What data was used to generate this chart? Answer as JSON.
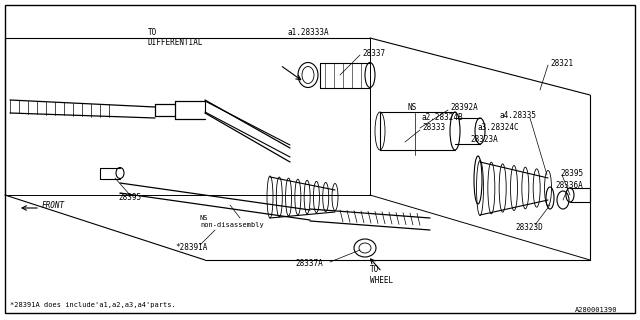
{
  "bg_color": "#ffffff",
  "title_bottom": "A280001390",
  "footnote": "*28391A does include'a1,a2,a3,a4'parts.",
  "labels": {
    "to_differential": "TO\nDIFFERENTIAL",
    "to_wheel": "TO\nWHEEL",
    "front": "FRONT",
    "ns_top": "NS",
    "ns_bottom": "NS\nnon-disassembly",
    "28321": "28321",
    "28392A": "28392A",
    "28337": "28337",
    "28333": "28333",
    "28324B": "a2.28324B",
    "28323A": "28323A",
    "28324C": "a3.28324C",
    "28335": "a4.28335",
    "28336A": "28336A",
    "28395_right": "28395",
    "28395_left": "28395",
    "28323D": "28323D",
    "28391A": "*28391A",
    "28337A": "28337A",
    "28333A": "a1.28333A"
  },
  "figsize": [
    6.4,
    3.2
  ],
  "dpi": 100
}
